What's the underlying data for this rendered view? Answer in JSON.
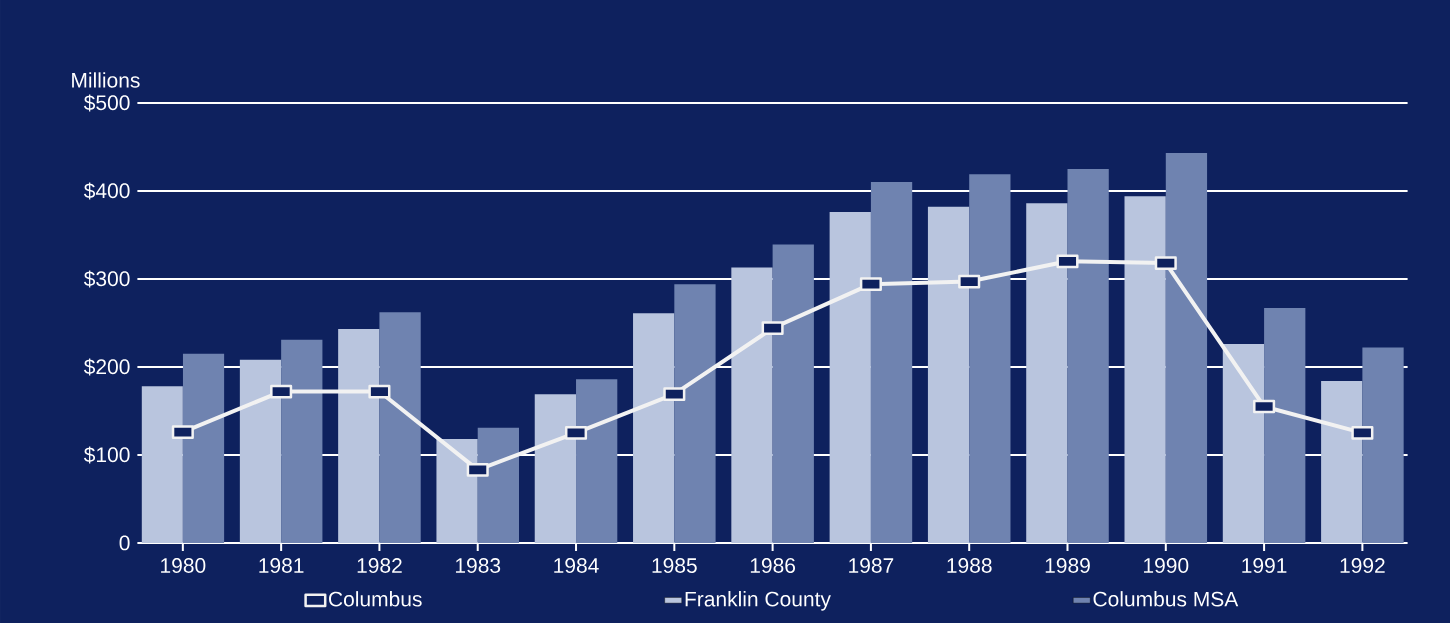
{
  "chart_data": {
    "type": "bar",
    "ylabel": "Millions",
    "categories": [
      "1980",
      "1981",
      "1982",
      "1983",
      "1984",
      "1985",
      "1986",
      "1987",
      "1988",
      "1989",
      "1990",
      "1991",
      "1992"
    ],
    "series": [
      {
        "name": "Columbus",
        "type": "line",
        "color": "#f2f2f2",
        "marker": "square",
        "line_style": "solid",
        "values": [
          126,
          172,
          172,
          83,
          125,
          169,
          244,
          294,
          297,
          320,
          318,
          155,
          125
        ]
      },
      {
        "name": "Franklin County",
        "color": "#b9c5de",
        "values": [
          178,
          208,
          243,
          118,
          169,
          261,
          313,
          376,
          382,
          386,
          394,
          226,
          184
        ]
      },
      {
        "name": "Columbus MSA",
        "color": "#6f83b0",
        "values": [
          215,
          231,
          262,
          131,
          186,
          294,
          339,
          410,
          419,
          425,
          443,
          267,
          222
        ]
      }
    ],
    "ylim": [
      0,
      500
    ],
    "yticks": [
      0,
      {
        "value": 100,
        "label": "$100"
      },
      {
        "value": 200,
        "label": "$200"
      },
      {
        "value": 300,
        "label": "$300"
      },
      {
        "value": 400,
        "label": "$400"
      },
      {
        "value": 500,
        "label": "$500"
      }
    ],
    "grid": "y",
    "legend": "bottom"
  }
}
